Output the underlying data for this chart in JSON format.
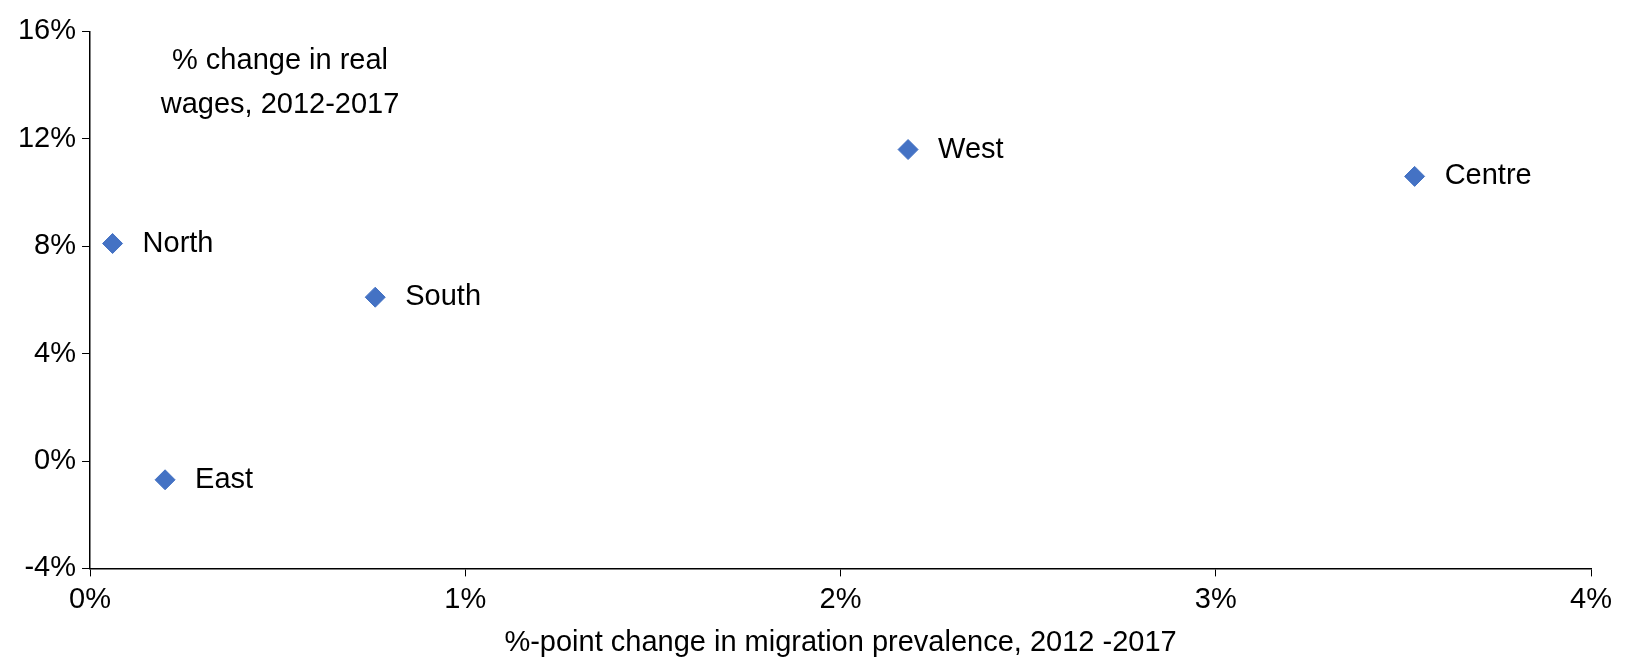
{
  "chart_data": {
    "type": "scatter",
    "title": "% change in real wages, 2012-2017",
    "xlabel": "%-point change in migration prevalence, 2012 -2017",
    "x": [
      0.06,
      0.76,
      0.2,
      2.18,
      3.53
    ],
    "series": [
      {
        "color": "#4472c4",
        "values": [
          8.1,
          6.1,
          -0.7,
          11.6,
          10.6
        ]
      }
    ],
    "marker": "diamond",
    "grid": false,
    "legend": false,
    "xlim": [
      0,
      4
    ],
    "xticks": [
      {
        "value": 0,
        "label": "0%"
      },
      {
        "value": 1,
        "label": "1%"
      },
      {
        "value": 2,
        "label": "2%"
      },
      {
        "value": 3,
        "label": "3%"
      },
      {
        "value": 4,
        "label": "4%"
      }
    ],
    "ylim": [
      -4,
      16
    ],
    "yticks": [
      {
        "value": -4,
        "label": "-4%"
      },
      {
        "value": 0,
        "label": "0%"
      },
      {
        "value": 4,
        "label": "4%"
      },
      {
        "value": 8,
        "label": "8%"
      },
      {
        "value": 12,
        "label": "12%"
      },
      {
        "value": 16,
        "label": "16%"
      }
    ],
    "annotations": [
      {
        "text": "North",
        "x": 0.06,
        "y": 8.1
      },
      {
        "text": "South",
        "x": 0.76,
        "y": 6.1
      },
      {
        "text": "East",
        "x": 0.2,
        "y": -0.7
      },
      {
        "text": "West",
        "x": 2.18,
        "y": 11.6
      },
      {
        "text": "Centre",
        "x": 3.53,
        "y": 10.6
      }
    ]
  }
}
